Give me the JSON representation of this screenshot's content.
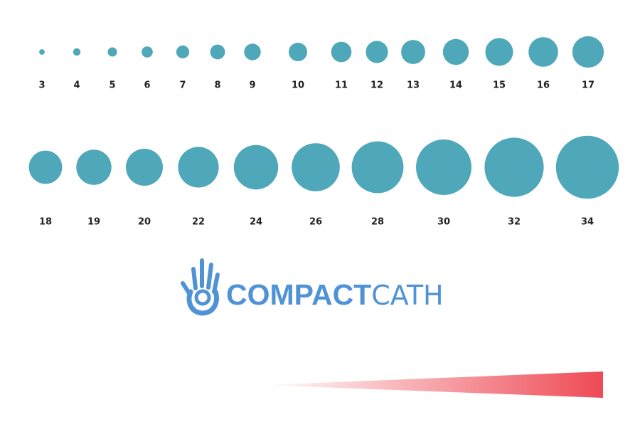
{
  "rows": [
    {
      "sizes": [
        3,
        4,
        5,
        6,
        7,
        8,
        9,
        10,
        11,
        12,
        13,
        14,
        15,
        16,
        17
      ]
    },
    {
      "sizes": [
        18,
        19,
        20,
        22,
        24,
        26,
        28,
        30,
        32,
        34
      ]
    }
  ],
  "logo": {
    "bold": "COMPACT",
    "light": "CATH"
  }
}
